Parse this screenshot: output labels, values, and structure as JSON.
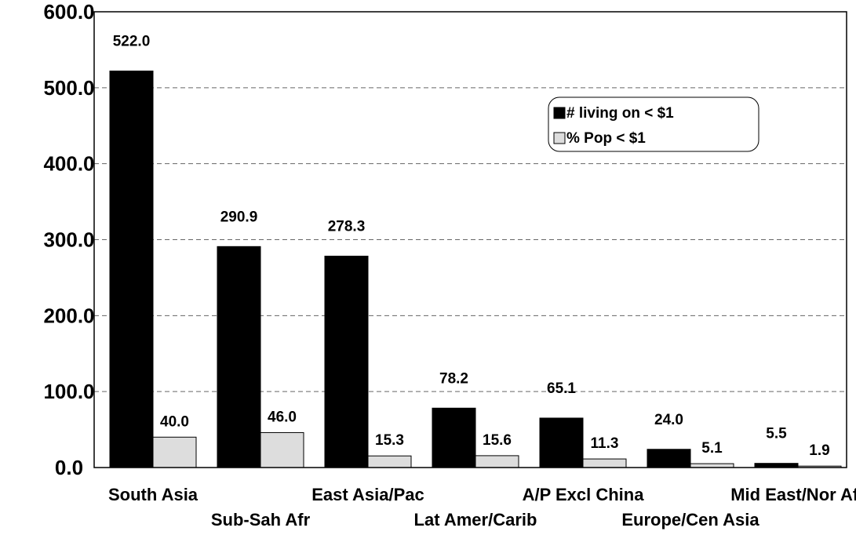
{
  "chart_data": {
    "type": "bar",
    "title": "",
    "xlabel": "",
    "ylabel": "",
    "ylim": [
      0,
      600
    ],
    "y_ticks": [
      "0.0",
      "100.0",
      "200.0",
      "300.0",
      "400.0",
      "500.0",
      "600.0"
    ],
    "grid": "horizontal-dashed",
    "legend_position": "top-right",
    "categories": [
      "South Asia",
      "Sub-Sah Afr",
      "East Asia/Pac",
      "Lat Amer/Carib",
      "A/P Excl China",
      "Europe/Cen Asia",
      "Mid East/Nor Afr"
    ],
    "series": [
      {
        "name": "# living on < $1",
        "color": "#000000",
        "values": [
          522.0,
          290.9,
          278.3,
          78.2,
          65.1,
          24.0,
          5.5
        ],
        "labels": [
          "522.0",
          "290.9",
          "278.3",
          "78.2",
          "65.1",
          "24.0",
          "5.5"
        ]
      },
      {
        "name": "% Pop < $1",
        "color": "#dddddd",
        "values": [
          40.0,
          46.0,
          15.3,
          15.6,
          11.3,
          5.1,
          1.9
        ],
        "labels": [
          "40.0",
          "46.0",
          "15.3",
          "15.6",
          "11.3",
          "5.1",
          "1.9"
        ]
      }
    ]
  }
}
